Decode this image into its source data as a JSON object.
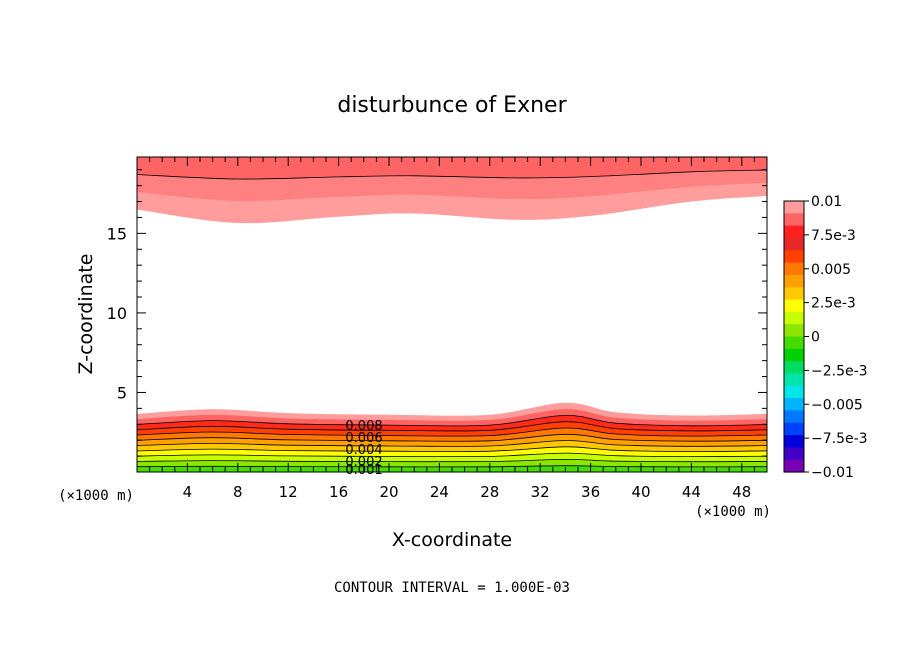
{
  "chart_data": {
    "type": "contour",
    "title": "disturbunce of Exner",
    "xlabel": "X-coordinate",
    "ylabel": "Z-coordinate",
    "x_unit_left": "(×1000 m)",
    "x_unit_right": "(×1000 m)",
    "xlim": [
      0,
      50
    ],
    "ylim": [
      0,
      19.8
    ],
    "x_ticks": [
      "4",
      "8",
      "12",
      "16",
      "20",
      "24",
      "28",
      "32",
      "36",
      "40",
      "44",
      "48"
    ],
    "y_ticks": [
      "5",
      "10",
      "15"
    ],
    "footer": "CONTOUR INTERVAL = 1.000E-03",
    "contour_labels": [
      "0.008",
      "0.006",
      "0.004",
      "0.002",
      "0.001"
    ],
    "colorbar": {
      "labels": [
        "0.01",
        "7.5e-3",
        "0.005",
        "2.5e-3",
        "0",
        "−2.5e-3",
        "−0.005",
        "−7.5e-3",
        "−0.01"
      ],
      "colors": [
        "#ff9c9c",
        "#ff6464",
        "#ff2020",
        "#e62828",
        "#ff4000",
        "#ff7800",
        "#ffa000",
        "#ffc800",
        "#ffff00",
        "#c8ff00",
        "#8ce600",
        "#46dc00",
        "#00d200",
        "#00dc64",
        "#00e6aa",
        "#00e6e6",
        "#00b4ff",
        "#0078ff",
        "#0040ff",
        "#0000dc",
        "#4000c8",
        "#7800b4"
      ]
    },
    "bottom_layer": {
      "x": [
        0,
        6,
        12,
        20,
        28,
        34,
        38,
        44,
        50
      ],
      "top": [
        3.65,
        3.95,
        3.7,
        3.6,
        3.6,
        4.35,
        3.75,
        3.55,
        3.65
      ],
      "level_colors": [
        "#ff9c9c",
        "#ff6464",
        "#ff2a1a",
        "#ff4000",
        "#ff7800",
        "#ffa000",
        "#ffc800",
        "#ffff00",
        "#c8ff00",
        "#8ce600",
        "#46dc00"
      ]
    },
    "top_layer": {
      "x": [
        0,
        8,
        16,
        22,
        30,
        36,
        44,
        50
      ],
      "bottom": [
        16.5,
        15.65,
        16.05,
        16.25,
        15.85,
        16.1,
        17.0,
        17.35
      ],
      "level_colors": [
        "#ff9c9c",
        "#ff8080",
        "#ff6464"
      ]
    }
  }
}
